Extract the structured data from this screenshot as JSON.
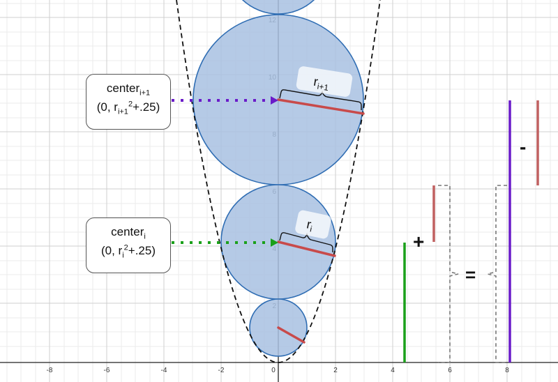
{
  "axis": {
    "x_ticks": [
      "-8",
      "-6",
      "-4",
      "-2",
      "0",
      "2",
      "4",
      "6",
      "8"
    ],
    "y_ticks": [
      "2",
      "4",
      "6",
      "8",
      "10",
      "12"
    ]
  },
  "callout_upper": {
    "title": "center",
    "title_sub": "i+1",
    "line2_pre": "(0, r",
    "line2_sub": "i+1",
    "line2_sup": "2",
    "line2_post": "+.25)"
  },
  "callout_lower": {
    "title": "center",
    "title_sub": "i",
    "line2_pre": "(0, r",
    "line2_sub": "i",
    "line2_sup": "2",
    "line2_post": "+.25)"
  },
  "radius_labels": {
    "upper": {
      "base": "r",
      "sub": "i+1"
    },
    "lower": {
      "base": "r",
      "sub": "i"
    }
  },
  "equation": {
    "plus": "+",
    "equals": "=",
    "minus": "-"
  },
  "colors": {
    "circle_fill": "#a8c1e2",
    "circle_stroke": "#2f6db3",
    "radius": "#c84a4a",
    "green": "#1aa01a",
    "purple": "#6a1bc9",
    "bar_red": "#c06060"
  }
}
